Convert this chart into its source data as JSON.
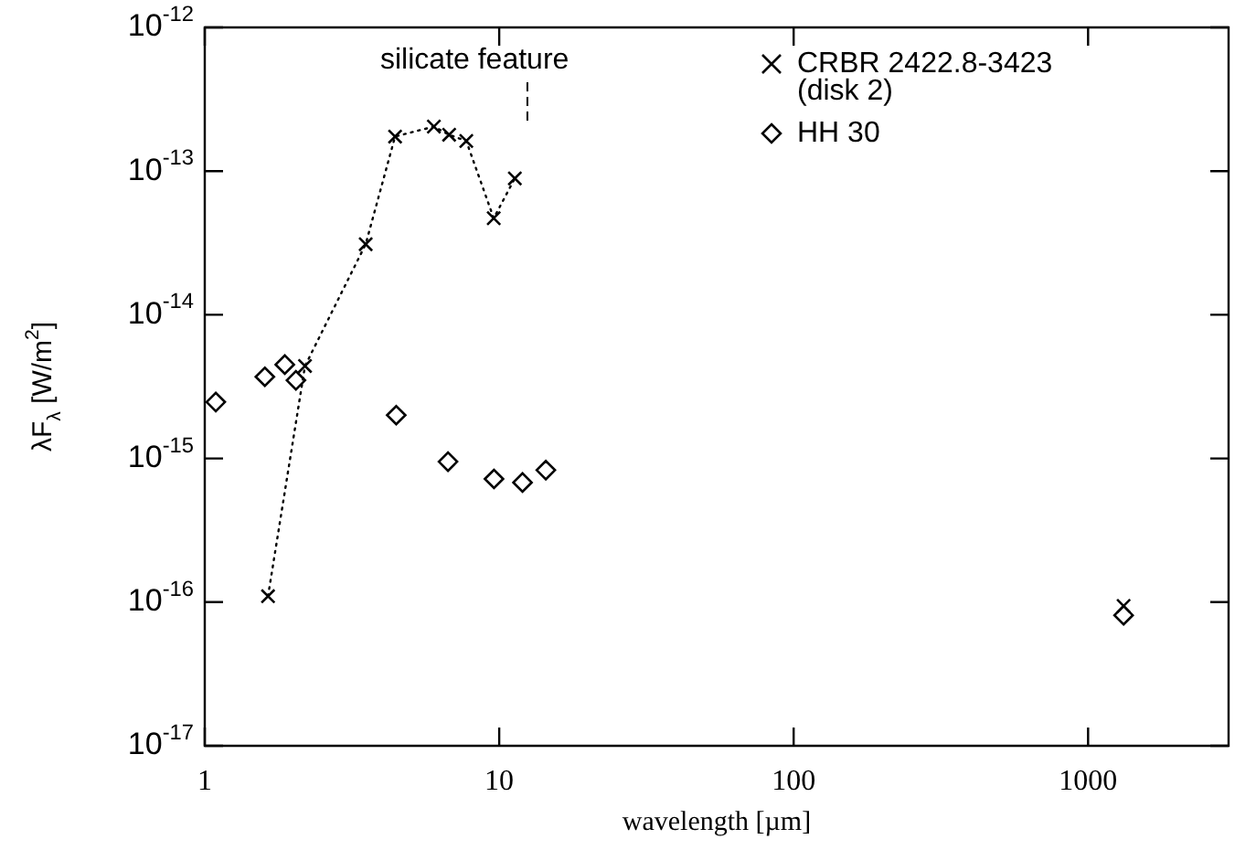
{
  "chart_data": {
    "type": "scatter",
    "xlabel": "wavelength [µm]",
    "ylabel": "λF$_{λ}$ [W/m$^{2}$]",
    "log": "xy",
    "grid": false,
    "legend": "top right",
    "xlim": [
      1,
      3000
    ],
    "xticks": [
      1,
      10,
      100,
      1000
    ],
    "ylim": [
      1e-17,
      1e-12
    ],
    "yticks": [
      {
        "value": 1e-17,
        "label": "10$^{-17}$"
      },
      {
        "value": 1e-16,
        "label": "10$^{-16}$"
      },
      {
        "value": 1e-15,
        "label": "10$^{-15}$"
      },
      {
        "value": 1e-14,
        "label": "10$^{-14}$"
      },
      {
        "value": 1e-13,
        "label": "10$^{-13}$"
      },
      {
        "value": 1e-12,
        "label": "10$^{-12}$"
      }
    ],
    "annotations": [
      "silicate feature"
    ],
    "series": [
      {
        "name": "CRBR 2422.8-3423 (disk 2)",
        "type": "line",
        "color": "#000000",
        "marker": "cross",
        "line_style": "dotted",
        "x": [
          1.64,
          2.19,
          3.52,
          4.43,
          6.0,
          6.76,
          7.73,
          9.58,
          11.3
        ],
        "values": [
          1.1e-16,
          4.4e-15,
          3.1e-14,
          1.74e-13,
          2.04e-13,
          1.79e-13,
          1.62e-13,
          4.7e-14,
          8.9e-14
        ]
      },
      {
        "type": "scatter",
        "color": "#000000",
        "marker": "cross",
        "x": [
          1320
        ],
        "values": [
          9.4e-17
        ]
      },
      {
        "name": "HH 30",
        "type": "scatter",
        "color": "#000000",
        "marker": "diamond",
        "x": [
          1.09,
          1.6,
          1.87,
          2.04,
          4.47,
          6.7,
          9.6,
          12.0,
          14.4,
          1320
        ],
        "values": [
          2.47e-15,
          3.7e-15,
          4.5e-15,
          3.5e-15,
          2e-15,
          9.5e-16,
          7.2e-16,
          6.8e-16,
          8.3e-16,
          8.1e-17
        ]
      }
    ]
  }
}
